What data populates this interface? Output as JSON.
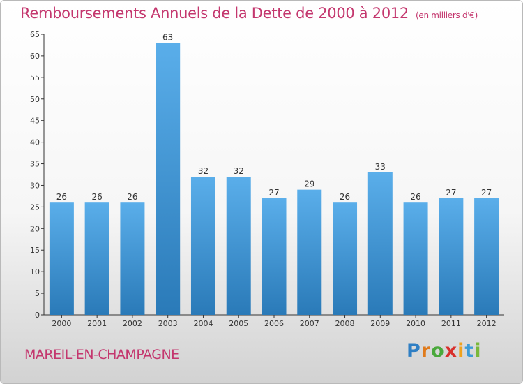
{
  "header": {
    "title": "Remboursements Annuels de la Dette de 2000 à 2012",
    "unit_note": "(en milliers d'€)"
  },
  "footer": {
    "commune": "MAREIL-EN-CHAMPAGNE",
    "logo": {
      "letters": [
        "P",
        "r",
        "o",
        "x",
        "i",
        "t",
        "i"
      ],
      "colors": [
        "#2f7fc4",
        "#e07b1c",
        "#4aa93c",
        "#d8302c",
        "#f0a21c",
        "#3c9bd6",
        "#7ab83a"
      ]
    }
  },
  "chart_data": {
    "type": "bar",
    "title": "Remboursements Annuels de la Dette de 2000 à 2012",
    "xlabel": "",
    "ylabel": "",
    "categories": [
      "2000",
      "2001",
      "2002",
      "2003",
      "2004",
      "2005",
      "2006",
      "2007",
      "2008",
      "2009",
      "2010",
      "2011",
      "2012"
    ],
    "values": [
      26,
      26,
      26,
      63,
      32,
      32,
      27,
      29,
      26,
      33,
      26,
      27,
      27
    ],
    "ylim": [
      0,
      65
    ],
    "yticks": [
      0,
      5,
      10,
      15,
      20,
      25,
      30,
      35,
      40,
      45,
      50,
      55,
      60,
      65
    ],
    "grid": false,
    "legend": "none",
    "bar_color_top": "#5aaeea",
    "bar_color_bottom": "#2a7ab8"
  }
}
